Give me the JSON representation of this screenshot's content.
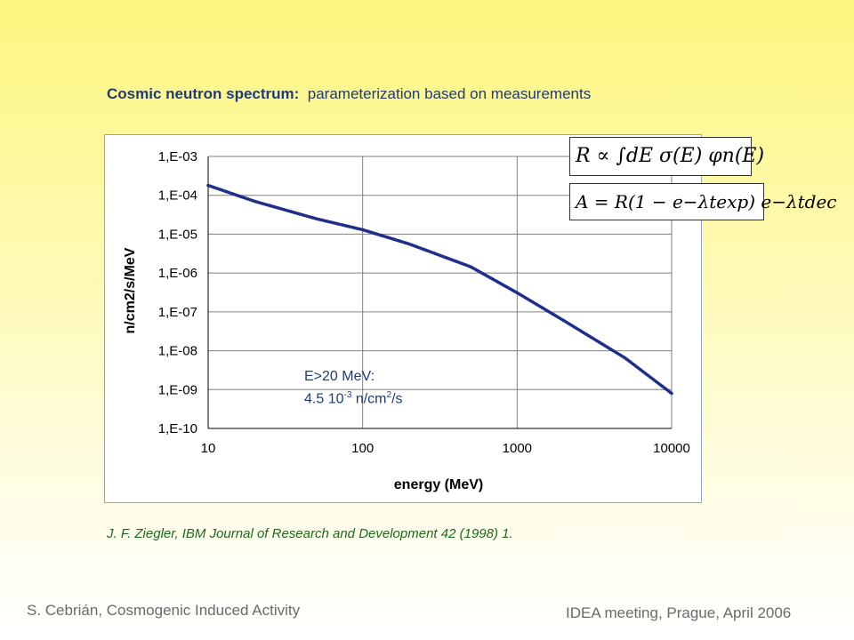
{
  "title": {
    "bold": "Cosmic neutron spectrum:",
    "rest": "parameterization based on measurements"
  },
  "formulas": {
    "rate": "R ∝ ∫dE σ(E) φn(E)",
    "activity": "A = R(1 − e−λtexp) e−λtdec"
  },
  "citation": "J. F. Ziegler, IBM Journal of Research and Development 42 (1998) 1.",
  "footer": {
    "left": "S. Cebrián, Cosmogenic Induced Activity",
    "right": "IDEA meeting, Prague, April 2006"
  },
  "annotation": {
    "line1": "E>20 MeV:",
    "value": "4.5 10",
    "exp": "-3",
    "unit": " n/cm",
    "unit_exp": "2",
    "unit_tail": "/s"
  },
  "chart_data": {
    "type": "scatter",
    "xlabel": "energy (MeV)",
    "ylabel": "n/cm2/s/MeV",
    "x_scale": "log",
    "y_scale": "log",
    "xlim": [
      10,
      10000
    ],
    "ylim": [
      1e-10,
      0.001
    ],
    "grid": true,
    "x_ticks": [
      "10",
      "100",
      "1000",
      "10000"
    ],
    "y_ticks": [
      "1,E-10",
      "1,E-09",
      "1,E-08",
      "1,E-07",
      "1,E-06",
      "1,E-05",
      "1,E-04",
      "1,E-03"
    ],
    "colors": {
      "series": "#1f2f8a",
      "grid": "#808080",
      "axis": "#000000"
    },
    "series": [
      {
        "x": [
          10,
          20,
          50,
          100,
          200,
          500,
          1000,
          2000,
          5000,
          10000
        ],
        "y": [
          0.00018,
          7e-05,
          2.5e-05,
          1.3e-05,
          5.6e-06,
          1.45e-06,
          3.1e-07,
          6e-08,
          6.5e-09,
          8e-10
        ]
      }
    ]
  }
}
